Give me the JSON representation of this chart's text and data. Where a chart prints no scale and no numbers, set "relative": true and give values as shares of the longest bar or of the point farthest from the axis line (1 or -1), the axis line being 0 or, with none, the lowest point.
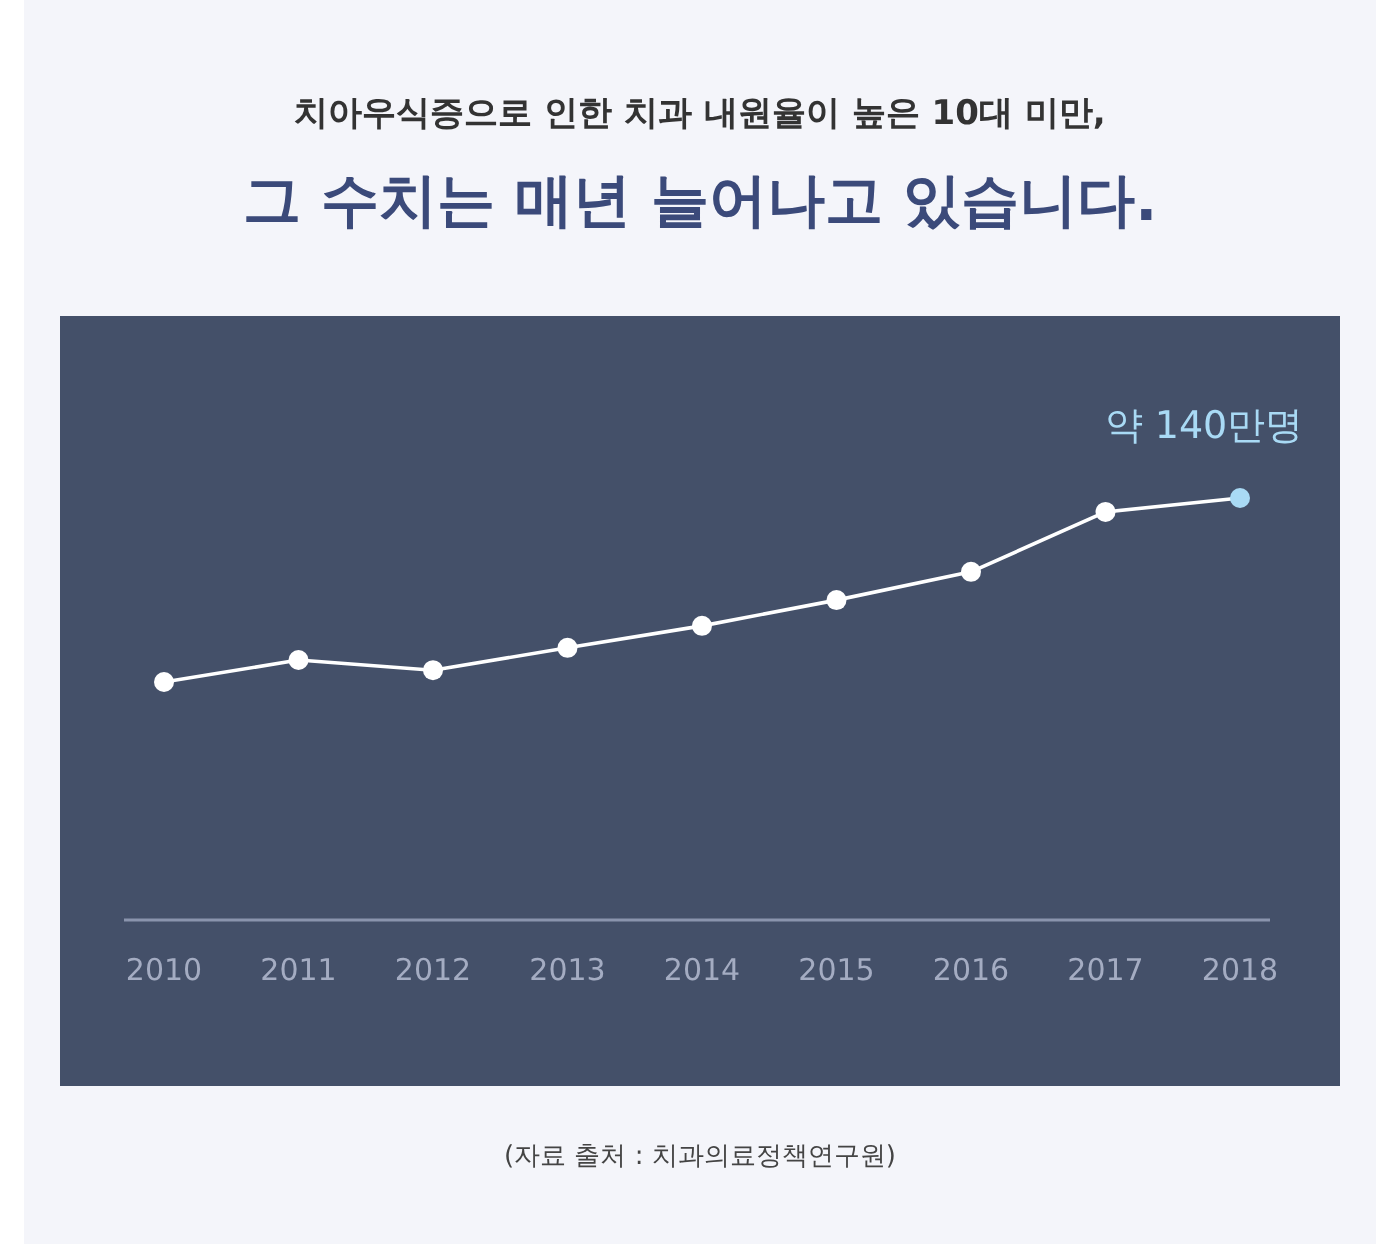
{
  "chart_data": {
    "type": "line",
    "title": "치아우식증으로 인한 치과 내원율이 높은 10대 미만,",
    "subtitle": "그 수치는 매년 늘어나고 있습니다.",
    "categories": [
      "2010",
      "2011",
      "2012",
      "2013",
      "2014",
      "2015",
      "2016",
      "2017",
      "2018"
    ],
    "relative": true,
    "marker": "circle",
    "line_style": "solid",
    "series": [
      {
        "color": "#ffffff",
        "colors": [
          "#ffffff",
          "#ffffff",
          "#ffffff",
          "#ffffff",
          "#ffffff",
          "#ffffff",
          "#ffffff",
          "#ffffff",
          "#a9daf5"
        ],
        "values": [
          0.564,
          0.616,
          0.592,
          0.645,
          0.697,
          0.758,
          0.825,
          0.967,
          1
        ]
      }
    ],
    "annotations": [
      {
        "text": "약 140만명",
        "x": "2018",
        "y": 1
      },
      "(자료 출처 : 치과의료정책연구원)"
    ]
  }
}
